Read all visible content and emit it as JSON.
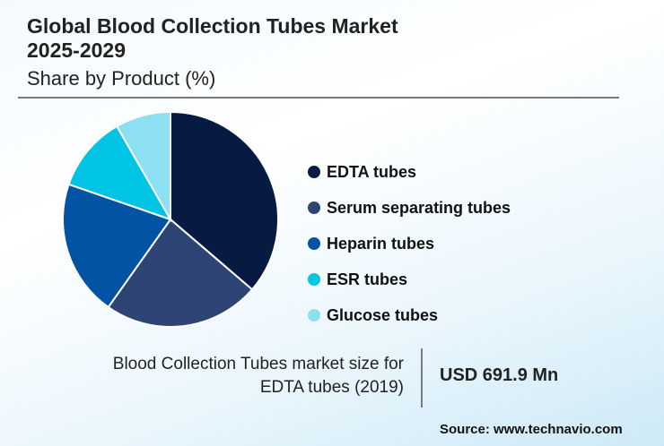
{
  "header": {
    "title_line1": "Global Blood Collection Tubes Market",
    "title_line2": "2025-2029",
    "subtitle": "Share by Product (%)"
  },
  "legend": [
    {
      "label": "EDTA tubes",
      "color": "#071b42"
    },
    {
      "label": "Serum separating tubes",
      "color": "#2e4475"
    },
    {
      "label": "Heparin tubes",
      "color": "#0353a4"
    },
    {
      "label": "ESR tubes",
      "color": "#00c4e3"
    },
    {
      "label": "Glucose tubes",
      "color": "#8ce0f2"
    }
  ],
  "stat": {
    "label_line1": "Blood Collection Tubes market size for",
    "label_line2": "EDTA tubes (2019)",
    "value": "USD 691.9 Mn"
  },
  "source": "Source: www.technavio.com",
  "chart_data": {
    "type": "pie",
    "title": "Global Blood Collection Tubes Market 2025-2029",
    "subtitle": "Share by Product (%)",
    "categories": [
      "EDTA tubes",
      "Serum separating tubes",
      "Heparin tubes",
      "ESR tubes",
      "Glucose tubes"
    ],
    "values": [
      36.3,
      23.5,
      20.5,
      11.4,
      8.3
    ],
    "colors": [
      "#071b42",
      "#2e4475",
      "#0353a4",
      "#00c4e3",
      "#8ce0f2"
    ],
    "start_angle": "12 o'clock, clockwise",
    "legend_position": "right"
  }
}
